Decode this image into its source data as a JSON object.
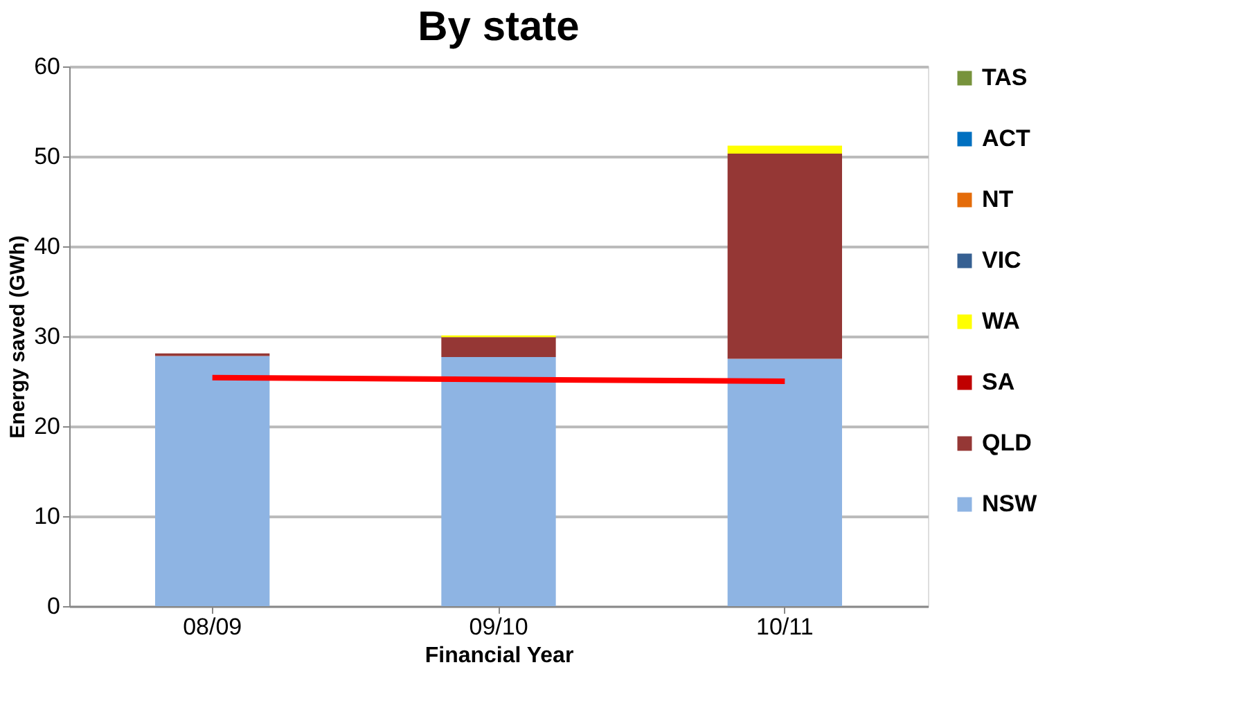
{
  "chart_data": {
    "type": "bar",
    "title": "By state",
    "xlabel": "Financial Year",
    "ylabel": "Energy saved (GWh)",
    "categories": [
      "08/09",
      "09/10",
      "10/11"
    ],
    "stacked": true,
    "series": [
      {
        "name": "NSW",
        "color": "#8eb4e3",
        "values": [
          27.8,
          27.7,
          27.5
        ]
      },
      {
        "name": "QLD",
        "color": "#953735",
        "values": [
          0.3,
          2.2,
          22.8
        ]
      },
      {
        "name": "SA",
        "color": "#c00000",
        "values": [
          0,
          0,
          0
        ]
      },
      {
        "name": "WA",
        "color": "#ffff00",
        "values": [
          0,
          0.2,
          0.9
        ]
      },
      {
        "name": "VIC",
        "color": "#366092",
        "values": [
          0,
          0,
          0
        ]
      },
      {
        "name": "NT",
        "color": "#e46c0a",
        "values": [
          0,
          0,
          0
        ]
      },
      {
        "name": "ACT",
        "color": "#0070c0",
        "values": [
          0,
          0,
          0
        ]
      },
      {
        "name": "TAS",
        "color": "#77933c",
        "values": [
          0,
          0,
          0
        ]
      },
      {
        "type": "line",
        "color": "#ff0000",
        "x": [
          "08/09",
          "10/11"
        ],
        "values": [
          25.4,
          25.0
        ]
      }
    ],
    "ylim": [
      0,
      60
    ],
    "yticks": [
      0,
      10,
      20,
      30,
      40,
      50,
      60
    ],
    "grid": "y",
    "legend": "right"
  }
}
